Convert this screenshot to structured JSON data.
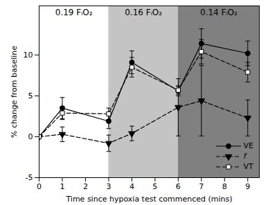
{
  "chart_data": {
    "type": "line",
    "xlabel": "Time since hypoxia test commenced (mins)",
    "ylabel": "% change from baseline",
    "xlim": [
      0,
      9.5
    ],
    "xticks": [
      0,
      1,
      2,
      3,
      4,
      5,
      6,
      7,
      8,
      9
    ],
    "ylim": [
      -5,
      16
    ],
    "yticks": [
      -5,
      0,
      5,
      10
    ],
    "grid": false,
    "legend": "bottom-right",
    "regions": [
      {
        "label": "0.19 FᵢO₂",
        "x": [
          0,
          3
        ],
        "color": "#ffffff"
      },
      {
        "label": "0.16 FᵢO₂",
        "x": [
          3,
          6
        ],
        "color": "#c4c4c4"
      },
      {
        "label": "0.14 FᵢO₂",
        "x": [
          6,
          9.5
        ],
        "color": "#808080"
      }
    ],
    "x": [
      0,
      1,
      3,
      4,
      6,
      7,
      9
    ],
    "series": [
      {
        "name": "VE",
        "color": "#000000",
        "marker": "circle",
        "line_style": "solid",
        "values": [
          0,
          3.5,
          1.9,
          9.1,
          5.6,
          11.4,
          10.2
        ],
        "errors": [
          0,
          1.3,
          0.9,
          1.4,
          0.6,
          1.8,
          1.5
        ]
      },
      {
        "name": "f",
        "color": "#000000",
        "marker": "triangle-down",
        "line_style": "dashed",
        "values": [
          0,
          0.3,
          -0.8,
          0.4,
          3.6,
          4.4,
          2.3
        ],
        "errors": [
          0,
          0.9,
          1.0,
          0.9,
          3.5,
          4.3,
          2.2
        ]
      },
      {
        "name": "VT",
        "color": "#000000",
        "marker": "square-open",
        "line_style": "dashed",
        "values": [
          0,
          2.9,
          2.8,
          8.5,
          5.7,
          10.4,
          7.9
        ],
        "errors": [
          0,
          0.8,
          0.7,
          1.2,
          0.5,
          1.5,
          1.2
        ]
      }
    ]
  }
}
